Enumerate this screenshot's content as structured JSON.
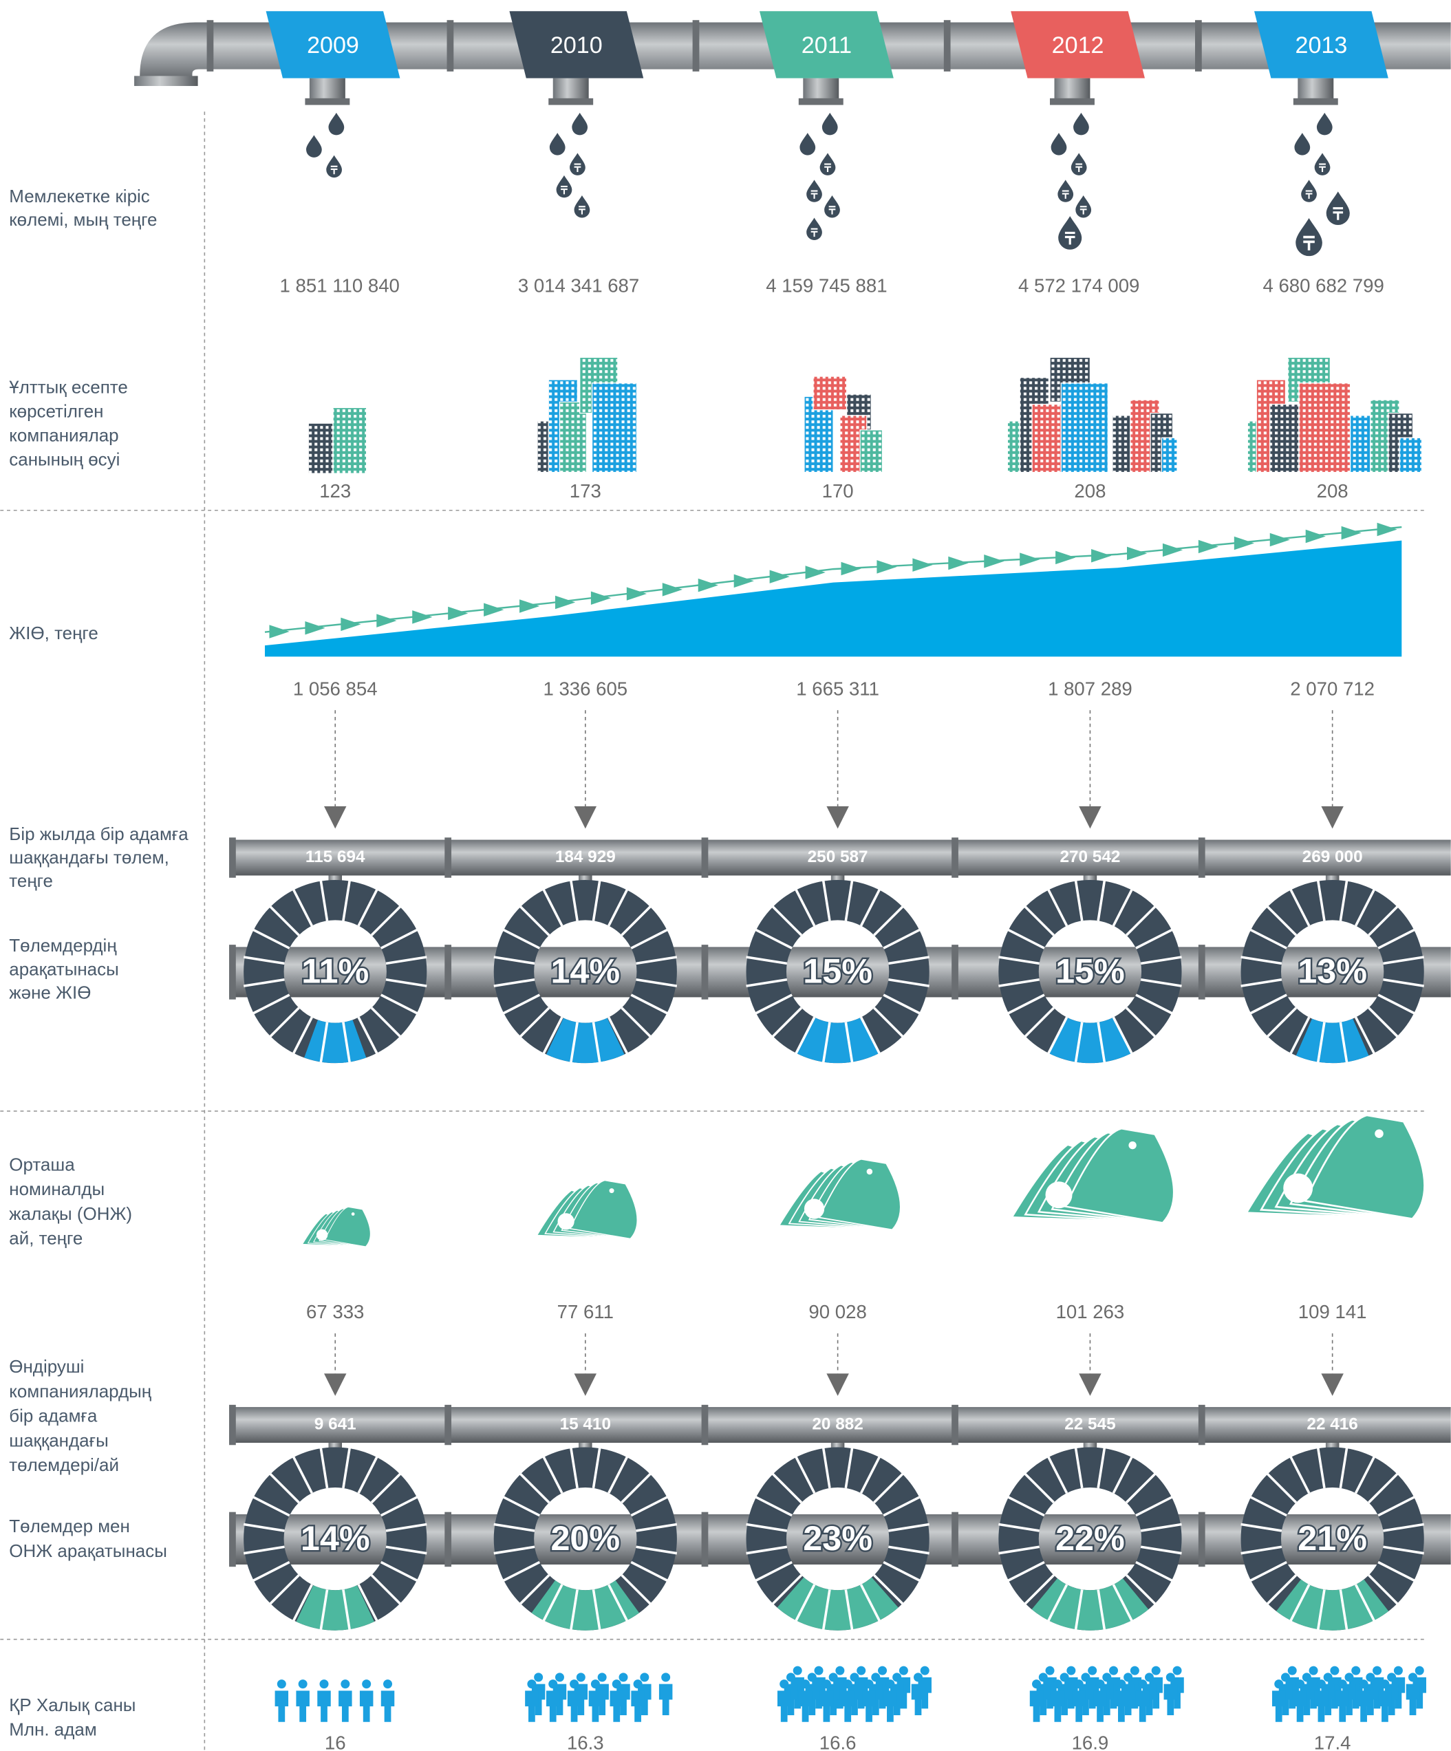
{
  "years": [
    {
      "label": "2009",
      "color": "#1ba0e0"
    },
    {
      "label": "2010",
      "color": "#3d4c5a"
    },
    {
      "label": "2011",
      "color": "#4db89f"
    },
    {
      "label": "2012",
      "color": "#e8605e"
    },
    {
      "label": "2013",
      "color": "#1ba0e0"
    }
  ],
  "revenue": {
    "label": [
      "Мемлекетке кіріс",
      "көлемі, мың теңге"
    ],
    "values": [
      "1 851 110 840",
      "3 014 341 687",
      "4 159 745 881",
      "4 572 174 009",
      "4 680 682 799"
    ]
  },
  "companies": {
    "label": [
      "Ұлттық есепте",
      "көрсетілген",
      "компаниялар",
      "санының өсуі"
    ],
    "values": [
      "123",
      "173",
      "170",
      "208",
      "208"
    ]
  },
  "gdp": {
    "label": [
      "ЖІӨ, теңге"
    ],
    "values": [
      1056854,
      1336605,
      1665311,
      1807289,
      2070712
    ],
    "value_labels": [
      "1 056 854",
      "1 336 605",
      "1 665 311",
      "1 807 289",
      "2 070 712"
    ],
    "color": "#00a8e6",
    "arrow_color": "#4db89f"
  },
  "payment_per_person": {
    "label": [
      "Бір жылда бір адамға",
      "шаққандағы төлем,",
      "теңге"
    ],
    "values": [
      "115 694",
      "184 929",
      "250 587",
      "270 542",
      "269 000"
    ]
  },
  "payment_gdp_ratio": {
    "label": [
      "Төлемдердің",
      "арақатынасы",
      "және ЖІӨ"
    ],
    "values": [
      11,
      14,
      15,
      15,
      13
    ],
    "value_labels": [
      "11%",
      "14%",
      "15%",
      "15%",
      "13%"
    ],
    "color": "#1ba0e0"
  },
  "avg_wage": {
    "label": [
      "Орташа",
      "номиналды",
      "жалақы (ОНЖ)",
      "ай, теңге"
    ],
    "values": [
      "67 333",
      "77 611",
      "90 028",
      "101 263",
      "109 141"
    ]
  },
  "producer_payments": {
    "label": [
      "Өндіруші",
      "компаниялардың",
      "бір адамға",
      "шаққандағы",
      "төлемдері/ай"
    ],
    "values": [
      "9 641",
      "15 410",
      "20 882",
      "22 545",
      "22 416"
    ]
  },
  "payment_wage_ratio": {
    "label": [
      "Төлемдер мен",
      "ОНЖ арақатынасы"
    ],
    "values": [
      14,
      20,
      23,
      22,
      21
    ],
    "value_labels": [
      "14%",
      "20%",
      "23%",
      "22%",
      "21%"
    ],
    "color": "#4db89f"
  },
  "population": {
    "label": [
      "ҚР Халық саны",
      "Млн. адам"
    ],
    "values": [
      "16",
      "16.3",
      "16.6",
      "16.9",
      "17.4"
    ]
  }
}
